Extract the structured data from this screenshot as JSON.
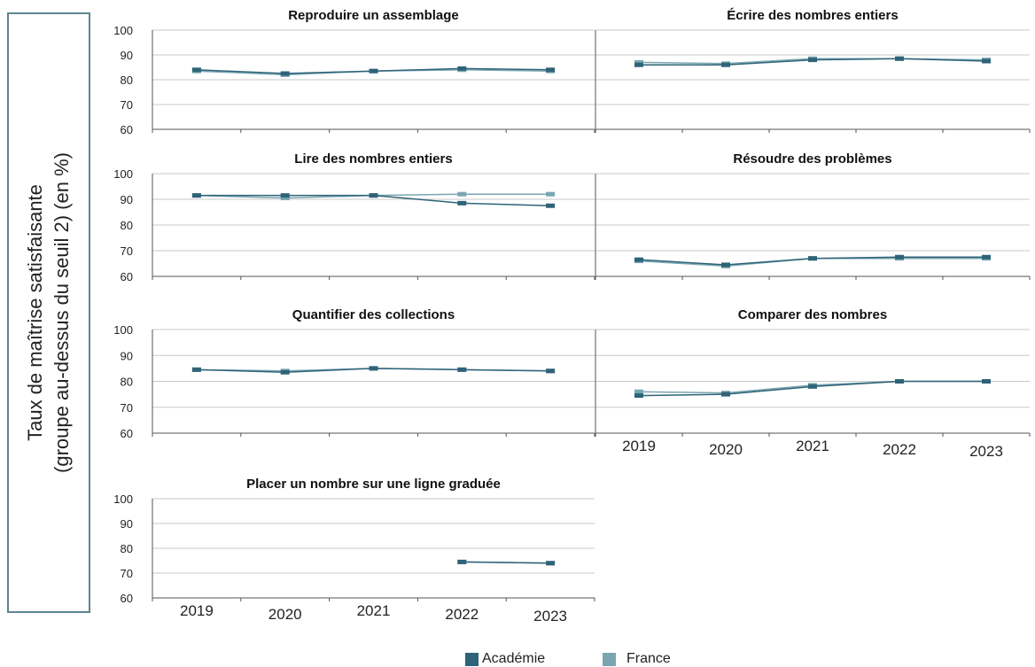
{
  "y_axis_label": {
    "line1": "Taux de maîtrise satisfaisante",
    "line2": "(groupe au-dessus du seuil 2) (en %)"
  },
  "legend": [
    {
      "name": "Académie",
      "color": "#2e6378"
    },
    {
      "name": "France",
      "color": "#7aa6b2"
    }
  ],
  "chart_data": [
    {
      "type": "line",
      "title": "Reproduire un assemblage",
      "categories": [
        "2019",
        "2020",
        "2021",
        "2022",
        "2023"
      ],
      "ylim": [
        60,
        100
      ],
      "yticks": [
        100,
        90,
        80,
        70,
        60
      ],
      "show_xticks": false,
      "series": [
        {
          "name": "Académie",
          "values": [
            84,
            82.5,
            83.5,
            84.5,
            84
          ]
        },
        {
          "name": "France",
          "values": [
            83.5,
            82,
            83.5,
            84,
            83.5
          ]
        }
      ]
    },
    {
      "type": "line",
      "title": "Écrire des nombres entiers",
      "categories": [
        "2019",
        "2020",
        "2021",
        "2022",
        "2023"
      ],
      "ylim": [
        60,
        100
      ],
      "yticks": [],
      "show_xticks": false,
      "series": [
        {
          "name": "Académie",
          "values": [
            86,
            86,
            88,
            88.5,
            87.5
          ]
        },
        {
          "name": "France",
          "values": [
            87,
            86.5,
            88.5,
            88.5,
            88
          ]
        }
      ]
    },
    {
      "type": "line",
      "title": "Lire des nombres entiers",
      "categories": [
        "2019",
        "2020",
        "2021",
        "2022",
        "2023"
      ],
      "ylim": [
        60,
        100
      ],
      "yticks": [
        100,
        90,
        80,
        70,
        60
      ],
      "show_xticks": false,
      "series": [
        {
          "name": "Académie",
          "values": [
            91.5,
            91.5,
            91.5,
            88.5,
            87.5
          ]
        },
        {
          "name": "France",
          "values": [
            91.5,
            90.5,
            91.5,
            92,
            92
          ]
        }
      ]
    },
    {
      "type": "line",
      "title": "Résoudre des problèmes",
      "categories": [
        "2019",
        "2020",
        "2021",
        "2022",
        "2023"
      ],
      "ylim": [
        60,
        100
      ],
      "yticks": [],
      "show_xticks": false,
      "series": [
        {
          "name": "Académie",
          "values": [
            66.5,
            64.5,
            67,
            67.5,
            67.5
          ]
        },
        {
          "name": "France",
          "values": [
            66,
            64,
            67,
            67,
            67
          ]
        }
      ]
    },
    {
      "type": "line",
      "title": "Quantifier des collections",
      "categories": [
        "2019",
        "2020",
        "2021",
        "2022",
        "2023"
      ],
      "ylim": [
        60,
        100
      ],
      "yticks": [
        100,
        90,
        80,
        70,
        60
      ],
      "show_xticks": false,
      "series": [
        {
          "name": "Académie",
          "values": [
            84.5,
            83.5,
            85,
            84.5,
            84
          ]
        },
        {
          "name": "France",
          "values": [
            84.5,
            84,
            85,
            84.5,
            84
          ]
        }
      ]
    },
    {
      "type": "line",
      "title": "Comparer des nombres",
      "categories": [
        "2019",
        "2020",
        "2021",
        "2022",
        "2023"
      ],
      "ylim": [
        60,
        100
      ],
      "yticks": [],
      "show_xticks": true,
      "series": [
        {
          "name": "Académie",
          "values": [
            74.5,
            75,
            78,
            80,
            80
          ]
        },
        {
          "name": "France",
          "values": [
            76,
            75.5,
            78.5,
            80,
            80
          ]
        }
      ]
    },
    {
      "type": "line",
      "title": "Placer un nombre sur une ligne graduée",
      "categories": [
        "2019",
        "2020",
        "2021",
        "2022",
        "2023"
      ],
      "ylim": [
        60,
        100
      ],
      "yticks": [
        100,
        90,
        80,
        70,
        60
      ],
      "show_xticks": true,
      "series": [
        {
          "name": "Académie",
          "values": [
            null,
            null,
            null,
            74.5,
            74
          ]
        },
        {
          "name": "France",
          "values": [
            null,
            null,
            null,
            74.5,
            74
          ]
        }
      ]
    }
  ]
}
